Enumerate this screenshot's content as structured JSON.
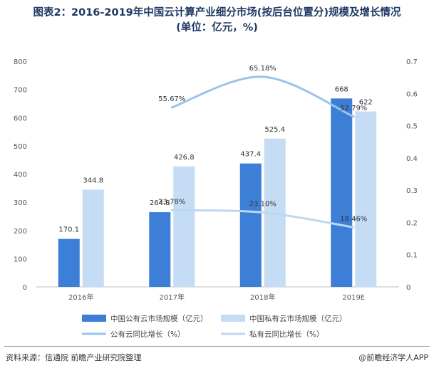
{
  "header": {
    "title_line1": "图表2：2016-2019年中国云计算产业细分市场(按后台位置分)规模及增长情况",
    "title_line2": "(单位：亿元，%)"
  },
  "footer": {
    "source": "资料来源：信通院 前瞻产业研究院整理",
    "brand": "@前瞻经济学人APP"
  },
  "colors": {
    "public_bar": "#3d7fd6",
    "private_bar": "#c5dcf5",
    "public_line": "#9dc3ea",
    "private_line": "#bcd7f2"
  },
  "chart_data": {
    "type": "bar",
    "categories": [
      "2016年",
      "2017年",
      "2018年",
      "2019E"
    ],
    "y_left": {
      "min": 0,
      "max": 800,
      "ticks": [
        "0",
        "100",
        "200",
        "300",
        "400",
        "500",
        "600",
        "700",
        "800"
      ]
    },
    "y_right": {
      "min": 0,
      "max": 0.7,
      "ticks": [
        "0",
        "0.1",
        "0.2",
        "0.3",
        "0.4",
        "0.5",
        "0.6",
        "0.7"
      ]
    },
    "series": [
      {
        "name": "中国公有云市场规模（亿元）",
        "type": "bar",
        "axis": "left",
        "values": [
          170.1,
          264.8,
          437.4,
          668
        ],
        "labels": [
          "170.1",
          "264.8",
          "437.4",
          "668"
        ]
      },
      {
        "name": "中国私有云市场规模（亿元）",
        "type": "bar",
        "axis": "left",
        "values": [
          344.8,
          426.8,
          525.4,
          622
        ],
        "labels": [
          "344.8",
          "426.8",
          "525.4",
          "622"
        ]
      },
      {
        "name": "公有云同比增长（%）",
        "type": "line",
        "axis": "right",
        "values": [
          null,
          0.5567,
          0.6518,
          0.5279
        ],
        "labels": [
          "",
          "55.67%",
          "65.18%",
          "52.79%"
        ]
      },
      {
        "name": "私有云同比增长（%）",
        "type": "line",
        "axis": "right",
        "values": [
          null,
          0.2378,
          0.231,
          0.1846
        ],
        "labels": [
          "",
          "23.78%",
          "23.10%",
          "18.46%"
        ]
      }
    ],
    "legend_position": "bottom",
    "grid": false
  }
}
